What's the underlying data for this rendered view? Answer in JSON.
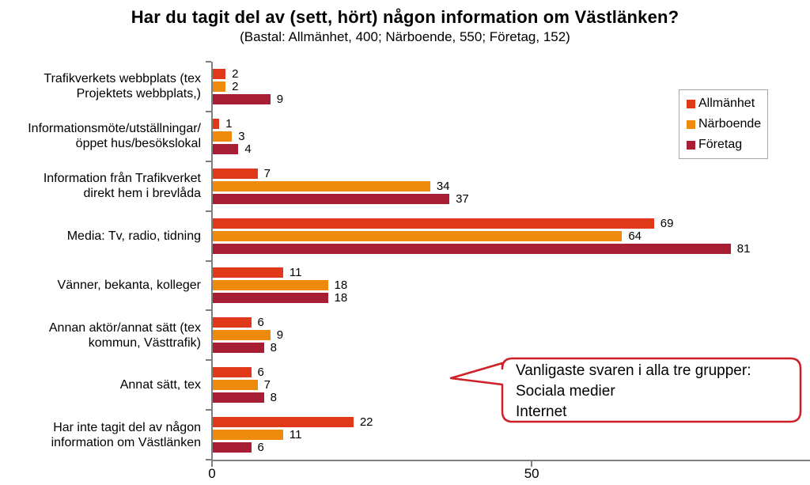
{
  "title": "Har du tagit del av (sett, hört) någon information om Västlänken?",
  "subtitle": "(Bastal: Allmänhet, 400; Närboende, 550; Företag, 152)",
  "chart_data": {
    "type": "bar",
    "orientation": "horizontal",
    "title": "Har du tagit del av (sett, hört) någon information om Västlänken?",
    "subtitle": "(Bastal: Allmänhet, 400; Närboende, 550; Företag, 152)",
    "categories": [
      [
        "Trafikverkets webbplats (tex",
        "Projektets webbplats,)"
      ],
      [
        "Informationsmöte/utställningar/",
        "öppet hus/besökslokal"
      ],
      [
        "Information från Trafikverket",
        "direkt hem i brevlåda"
      ],
      [
        "Media: Tv, radio, tidning"
      ],
      [
        "Vänner, bekanta, kolleger"
      ],
      [
        "Annan aktör/annat sätt (tex",
        "kommun, Västtrafik)"
      ],
      [
        "Annat sätt, tex"
      ],
      [
        "Har inte tagit del av någon",
        "information om Västlänken"
      ]
    ],
    "series": [
      {
        "name": "Allmänhet",
        "color": "#e0391a",
        "values": [
          2,
          1,
          7,
          69,
          11,
          6,
          6,
          22
        ]
      },
      {
        "name": "Närboende",
        "color": "#ee8b0e",
        "values": [
          2,
          3,
          34,
          64,
          18,
          9,
          7,
          11
        ]
      },
      {
        "name": "Företag",
        "color": "#a81e34",
        "values": [
          9,
          4,
          37,
          81,
          18,
          8,
          8,
          6
        ]
      }
    ],
    "xlim": [
      0,
      93.4
    ],
    "x_ticks": [
      0,
      50
    ],
    "grid": false,
    "legend_position": "upper-right",
    "value_labels": true
  },
  "axis": {
    "line_color": "#7f7f7f",
    "tick_labels": [
      "0",
      "50"
    ]
  },
  "callout": {
    "lines": [
      "Vanligaste svaren i alla tre grupper:",
      "Sociala medier",
      "Internet"
    ],
    "border_color": "#cf2027"
  }
}
